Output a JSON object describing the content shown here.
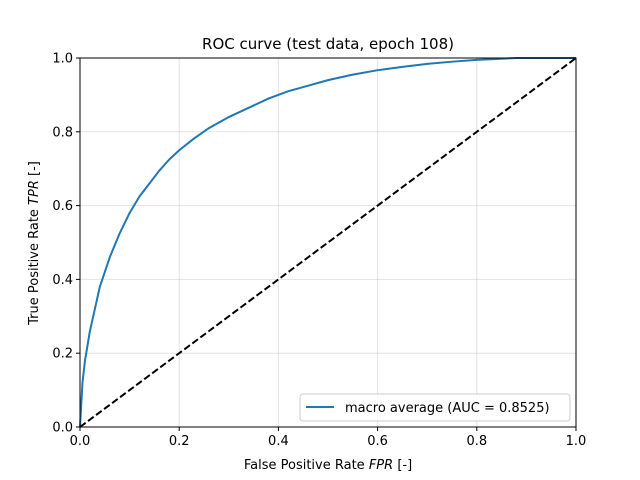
{
  "chart_data": {
    "type": "line",
    "title": "ROC curve (test data, epoch 108)",
    "xlabel": "False Positive Rate",
    "xlabel_symbol": "FPR",
    "xlabel_unit": "[-]",
    "ylabel": "True Positive Rate",
    "ylabel_symbol": "TPR",
    "ylabel_unit": "[-]",
    "xlim": [
      0,
      1
    ],
    "ylim": [
      0,
      1
    ],
    "xticks": [
      "0.0",
      "0.2",
      "0.4",
      "0.6",
      "0.8",
      "1.0"
    ],
    "yticks": [
      "0.0",
      "0.2",
      "0.4",
      "0.6",
      "0.8",
      "1.0"
    ],
    "grid": true,
    "legend_position": "lower-right",
    "series": [
      {
        "name": "macro average (AUC = 0.8525)",
        "color": "#1f77b4",
        "style": "solid",
        "x": [
          0.0,
          0.005,
          0.01,
          0.02,
          0.03,
          0.04,
          0.05,
          0.06,
          0.08,
          0.1,
          0.12,
          0.14,
          0.16,
          0.18,
          0.2,
          0.23,
          0.26,
          0.3,
          0.34,
          0.38,
          0.42,
          0.46,
          0.5,
          0.55,
          0.6,
          0.65,
          0.7,
          0.75,
          0.8,
          0.85,
          0.88,
          0.9,
          0.95,
          1.0
        ],
        "y": [
          0.0,
          0.12,
          0.18,
          0.26,
          0.32,
          0.38,
          0.42,
          0.46,
          0.525,
          0.58,
          0.625,
          0.66,
          0.695,
          0.725,
          0.75,
          0.782,
          0.81,
          0.84,
          0.865,
          0.89,
          0.91,
          0.925,
          0.94,
          0.955,
          0.967,
          0.976,
          0.984,
          0.99,
          0.995,
          0.998,
          1.0,
          1.0,
          1.0,
          1.0
        ]
      },
      {
        "name": "",
        "color": "#000000",
        "style": "dashed",
        "x": [
          0,
          1
        ],
        "y": [
          0,
          1
        ]
      }
    ]
  }
}
